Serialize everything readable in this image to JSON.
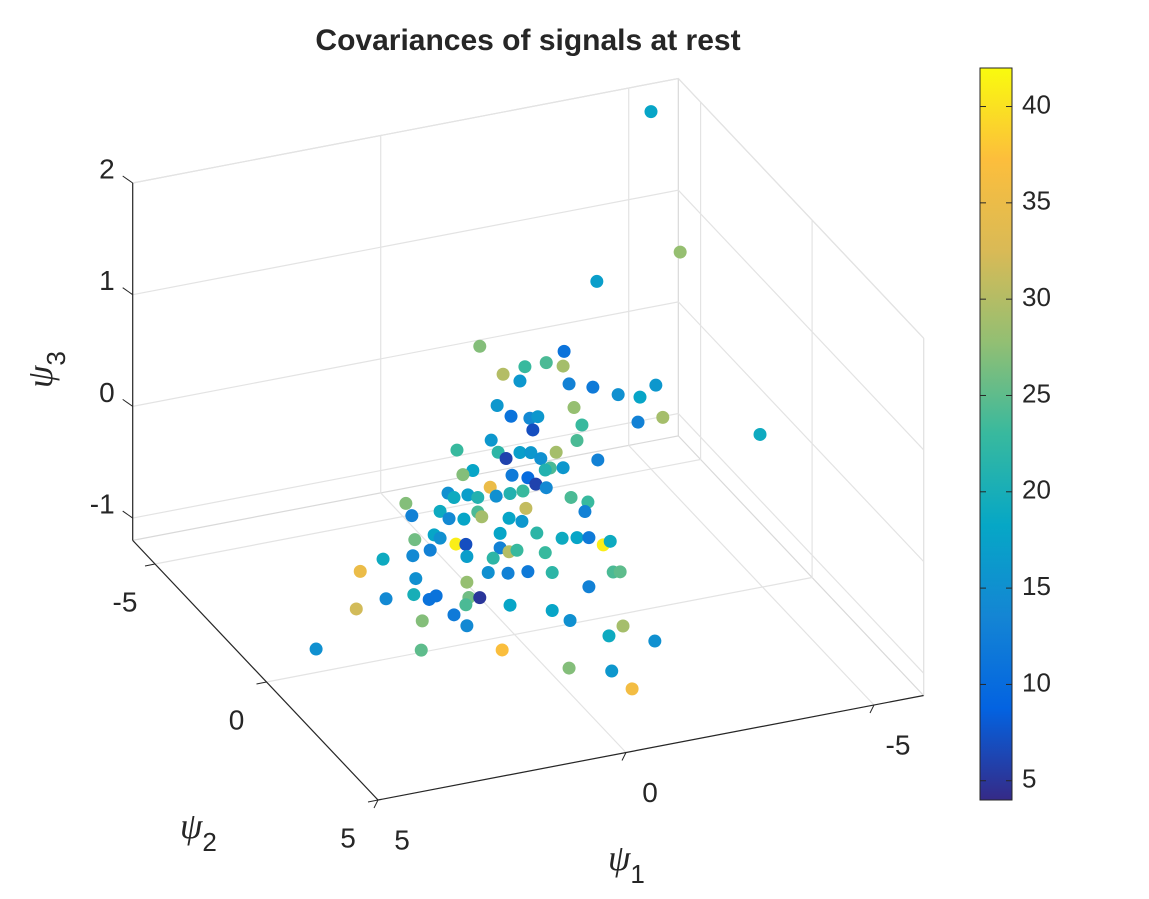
{
  "chart_data": {
    "type": "scatter",
    "title": "Covariances of signals at rest",
    "xlabel": "ψ1",
    "ylabel": "ψ2",
    "zlabel": "ψ3",
    "xlim": [
      -6,
      5
    ],
    "ylim": [
      -6,
      5
    ],
    "zlim": [
      -1.2,
      2
    ],
    "xticks": [
      -5,
      0,
      5
    ],
    "yticks": [
      -5,
      0,
      5
    ],
    "zticks": [
      -1,
      0,
      1,
      2
    ],
    "clim": [
      4,
      42
    ],
    "cticks": [
      5,
      10,
      15,
      20,
      25,
      30,
      35,
      40
    ],
    "colormap": "parula",
    "grid": true,
    "x": [
      -5,
      -3.34,
      -1.66,
      -4.95,
      0.7,
      -1.0,
      -0.64,
      -0.98,
      -0.21,
      0.23,
      -0.11,
      -1.1,
      -1.58,
      -2.09,
      -2.85,
      -2.53,
      0.35,
      -1.2,
      0.07,
      -0.31,
      -0.47,
      -0.37,
      -1.36,
      -2.49,
      -2.99,
      0.47,
      -1.26,
      -0.84,
      0.33,
      1.16,
      0.17,
      -0.11,
      -0.33,
      -0.53,
      -1.68,
      0.05,
      -0.27,
      -0.43,
      -0.72,
      -0.62,
      -0.98,
      0.84,
      1.04,
      0.49,
      0.37,
      0.09,
      -0.17,
      -0.64,
      -1.14,
      -1.48,
      2.19,
      1.34,
      0.94,
      1.22,
      0.74,
      1.5,
      -0.23,
      0.74,
      2.07,
      1.32,
      1.02,
      0.66,
      0.11,
      -0.15,
      -1.42,
      1.62,
      1.5,
      2.01,
      1.18,
      0.98,
      0.29,
      -0.45,
      -0.96,
      -1.26,
      -1.5,
      -1.79,
      -1.93,
      1.7,
      0.29,
      0.11,
      -0.05,
      -0.62,
      2.65,
      2.05,
      0.96,
      0.43,
      1.99,
      0.53,
      0.13,
      -0.27,
      -0.76,
      -1.99,
      -2.13,
      3.11,
      0.96,
      2.59,
      2.03,
      1.72,
      1.58,
      0.92,
      0.7,
      -1.5,
      3.19,
      0.98,
      0.09,
      1.22,
      -0.76,
      1.86,
      0.96,
      -1.9,
      -1.12,
      4.0,
      1.88,
      0.55,
      -1.5,
      -2.2,
      -0.3,
      -0.98,
      -1.04
    ],
    "y": [
      -5,
      0,
      0,
      0,
      0,
      0,
      0,
      0,
      0,
      0,
      0,
      0,
      0,
      0,
      0,
      0,
      0,
      0,
      0,
      0,
      0,
      0,
      0,
      0,
      0,
      0,
      0,
      0,
      0,
      0,
      0,
      0,
      0,
      0,
      0,
      0,
      0,
      0,
      0,
      0,
      0,
      0,
      0,
      0,
      0,
      0,
      0,
      0,
      0,
      0,
      0,
      0,
      0,
      0,
      0,
      0,
      0,
      0,
      0,
      0,
      0,
      0,
      0,
      0,
      0,
      0,
      0,
      0,
      0,
      0,
      0,
      0,
      0,
      0,
      0,
      0,
      0,
      0,
      0,
      0,
      0,
      0,
      0,
      0,
      0,
      0,
      0,
      0,
      0,
      0,
      0,
      0,
      0,
      0,
      0,
      0,
      0,
      0,
      0,
      0,
      0,
      0,
      0,
      0,
      0,
      0,
      0,
      0,
      0,
      0.64,
      0,
      0,
      0,
      0.67,
      0.9,
      1.4,
      1.78,
      2.18,
      2.96
    ],
    "z": [
      2.0,
      1.94,
      1.82,
      0.17,
      1.44,
      1.25,
      1.18,
      1.12,
      1.18,
      1.15,
      1.06,
      0.95,
      0.88,
      0.77,
      0.79,
      0.71,
      0.88,
      0.73,
      0.76,
      0.71,
      0.71,
      0.6,
      0.56,
      0.49,
      0.49,
      0.58,
      0.43,
      0.36,
      0.46,
      0.55,
      0.39,
      0.42,
      0.4,
      0.33,
      0.22,
      0.23,
      0.18,
      0.11,
      0.23,
      0.22,
      0.21,
      0.34,
      0.32,
      0.16,
      0.07,
      0.07,
      0.07,
      0.06,
      -0.07,
      -0.14,
      0.16,
      0.18,
      0.13,
      0.13,
      0.09,
      0.03,
      -0.09,
      -0.04,
      0.04,
      -0.05,
      -0.08,
      -0.09,
      -0.15,
      -0.2,
      -0.22,
      -0.17,
      -0.21,
      -0.18,
      -0.29,
      -0.31,
      -0.27,
      -0.33,
      -0.42,
      -0.44,
      -0.46,
      -0.55,
      -0.53,
      -0.3,
      -0.4,
      -0.45,
      -0.45,
      -0.52,
      -0.3,
      -0.32,
      -0.42,
      -0.48,
      -0.53,
      -0.6,
      -0.64,
      -0.66,
      -0.71,
      -0.81,
      -0.82,
      -0.37,
      -0.65,
      -0.66,
      -0.67,
      -0.74,
      -0.72,
      -0.79,
      -0.81,
      -0.9,
      -0.7,
      -0.85,
      -0.93,
      -0.92,
      -1.05,
      -0.92,
      -1.04,
      -1.15,
      -1.17,
      -0.99,
      -1.18,
      -1.15,
      -1.15,
      -1.15,
      -1.15,
      -1.15,
      -1.15
    ],
    "c": [
      18,
      28,
      17,
      19,
      27,
      11,
      24,
      29,
      23,
      30,
      16,
      13,
      12,
      15,
      16,
      18,
      16,
      28,
      11,
      14,
      16,
      7,
      23,
      13,
      29,
      16,
      24,
      29,
      22,
      23,
      6,
      17,
      16,
      15,
      13,
      12,
      10,
      6,
      24,
      21,
      16,
      18,
      27,
      35,
      15,
      21,
      23,
      14,
      24,
      23,
      27,
      15,
      17,
      19,
      21,
      19,
      31,
      24,
      13,
      14,
      18,
      29,
      18,
      16,
      13,
      18,
      15,
      26,
      41,
      7,
      18,
      22,
      19,
      18,
      12,
      41,
      19,
      13,
      13,
      30,
      23,
      23,
      19,
      14,
      17,
      22,
      15,
      15,
      13,
      12,
      22,
      24,
      25,
      35,
      28,
      14,
      20,
      11,
      11,
      26,
      5,
      13,
      32,
      24,
      18,
      12,
      18,
      27,
      14,
      29,
      15,
      15,
      25,
      37,
      19,
      15,
      27,
      16,
      36
    ]
  }
}
